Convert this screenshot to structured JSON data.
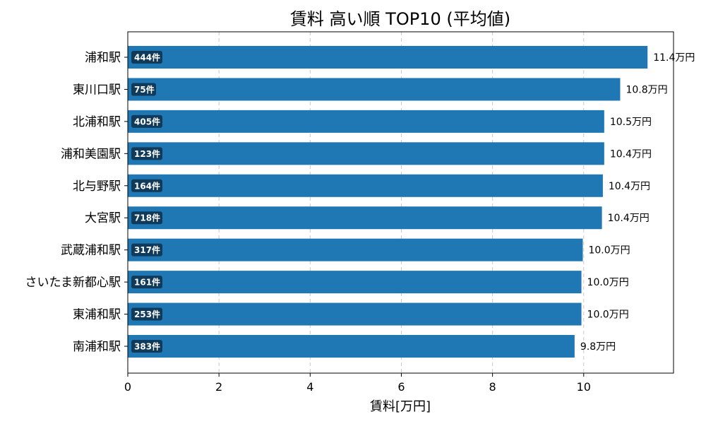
{
  "chart_data": {
    "type": "bar",
    "orientation": "horizontal",
    "title": "賃料 高い順 TOP10 (平均値)",
    "xlabel": "賃料[万円]",
    "ylabel": "",
    "xlim": [
      0,
      11.97
    ],
    "xticks": [
      0,
      2,
      4,
      6,
      8,
      10
    ],
    "grid": "x-dashed",
    "categories": [
      "浦和駅",
      "東川口駅",
      "北浦和駅",
      "浦和美園駅",
      "北与野駅",
      "大宮駅",
      "武蔵浦和駅",
      "さいたま新都心駅",
      "東浦和駅",
      "南浦和駅"
    ],
    "values": [
      11.4,
      10.8,
      10.45,
      10.45,
      10.42,
      10.4,
      9.98,
      9.95,
      9.95,
      9.8
    ],
    "value_labels": [
      "11.4万円",
      "10.8万円",
      "10.5万円",
      "10.4万円",
      "10.4万円",
      "10.4万円",
      "10.0万円",
      "10.0万円",
      "10.0万円",
      "9.8万円"
    ],
    "count_labels": [
      "444件",
      "75件",
      "405件",
      "123件",
      "164件",
      "718件",
      "317件",
      "161件",
      "253件",
      "383件"
    ],
    "colors": {
      "bar": "#1f77b4",
      "badge": "#0f3a5a",
      "grid": "#c8c8c8"
    }
  }
}
